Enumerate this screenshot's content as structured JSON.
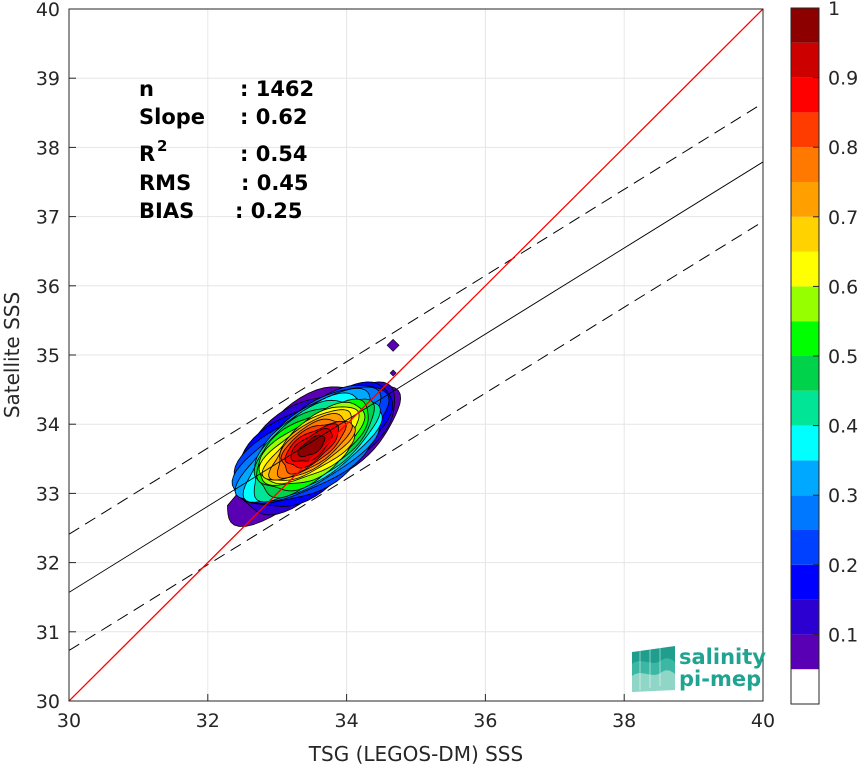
{
  "chart_data": {
    "type": "heatmap",
    "subtype": "density-contour-scatter",
    "xlabel": "TSG (LEGOS-DM) SSS",
    "ylabel": "Satellite SSS",
    "xlim": [
      30,
      40
    ],
    "ylim": [
      30,
      40
    ],
    "xticks": [
      30,
      32,
      34,
      36,
      38,
      40
    ],
    "yticks": [
      30,
      31,
      32,
      33,
      34,
      35,
      36,
      37,
      38,
      39,
      40
    ],
    "grid": true,
    "stats": [
      {
        "label": "n",
        "value": ": 1462"
      },
      {
        "label": "Slope",
        "value": ": 0.62"
      },
      {
        "label": "R",
        "sup": "2",
        "value": ": 0.54"
      },
      {
        "label": "RMS",
        "value": ": 0.45"
      },
      {
        "label": "BIAS",
        "value": ": 0.25"
      }
    ],
    "reference_lines": {
      "identity": {
        "x": [
          30,
          40
        ],
        "y": [
          30,
          40
        ],
        "color": "#ff0000"
      },
      "fit": {
        "x": [
          30,
          40
        ],
        "y": [
          31.57,
          37.79
        ],
        "color": "#000000"
      },
      "fit_upper": {
        "x": [
          30,
          40
        ],
        "y": [
          32.41,
          38.64
        ],
        "color": "#000000",
        "style": "dashed"
      },
      "fit_lower": {
        "x": [
          30,
          40
        ],
        "y": [
          30.73,
          36.93
        ],
        "color": "#000000",
        "style": "dashed"
      }
    },
    "density": {
      "center": [
        33.5,
        33.68
      ],
      "levels": [
        0.05,
        0.1,
        0.15,
        0.2,
        0.25,
        0.3,
        0.35,
        0.4,
        0.45,
        0.5,
        0.55,
        0.6,
        0.65,
        0.7,
        0.75,
        0.8,
        0.85,
        0.9,
        0.95
      ],
      "outliers": [
        {
          "x": 34.67,
          "y": 35.14
        },
        {
          "x": 34.67,
          "y": 34.74
        }
      ]
    },
    "colorbar": {
      "range": [
        0,
        1
      ],
      "ticks": [
        0.1,
        0.2,
        0.3,
        0.4,
        0.5,
        0.6,
        0.7,
        0.8,
        0.9,
        1
      ],
      "tick_labels": [
        "0.1",
        "0.2",
        "0.3",
        "0.4",
        "0.5",
        "0.6",
        "0.7",
        "0.8",
        "0.9",
        "1"
      ],
      "colors": [
        "#ffffff",
        "#5a00b4",
        "#2d00d2",
        "#0000ff",
        "#0040ff",
        "#0078ff",
        "#00a8ff",
        "#00ffff",
        "#00e696",
        "#00d24b",
        "#00ff00",
        "#96ff00",
        "#ffff00",
        "#ffd200",
        "#ffa000",
        "#ff7800",
        "#ff3c00",
        "#ff0000",
        "#cd0000",
        "#8c0000"
      ]
    }
  },
  "logo": {
    "line1": "salinity",
    "line2": "pi-mep"
  }
}
